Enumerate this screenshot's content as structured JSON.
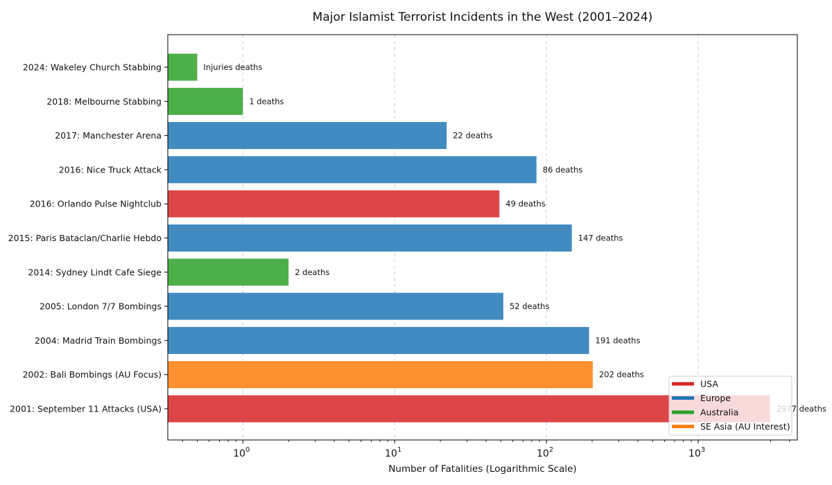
{
  "chart_data": {
    "type": "bar",
    "orientation": "horizontal",
    "title": "Major Islamist Terrorist Incidents in the West (2001–2024)",
    "xlabel": "Number of Fatalities (Logarithmic Scale)",
    "ylabel": "",
    "xscale": "log",
    "xlim": [
      0.32,
      4500
    ],
    "xticks": [
      {
        "value": 1,
        "base": "10",
        "exp": "0"
      },
      {
        "value": 10,
        "base": "10",
        "exp": "1"
      },
      {
        "value": 100,
        "base": "10",
        "exp": "2"
      },
      {
        "value": 1000,
        "base": "10",
        "exp": "3"
      }
    ],
    "grid": "x-dashed",
    "legend_position": "bottom-right",
    "categories": [
      "2024: Wakeley Church Stabbing",
      "2018: Melbourne Stabbing",
      "2017: Manchester Arena",
      "2016: Nice Truck Attack",
      "2016: Orlando Pulse Nightclub",
      "2015: Paris Bataclan/Charlie Hebdo",
      "2014: Sydney Lindt Cafe Siege",
      "2005: London 7/7 Bombings",
      "2004: Madrid Train Bombings",
      "2002: Bali Bombings (AU Focus)",
      "2001: September 11 Attacks (USA)"
    ],
    "values": [
      0.5,
      1,
      22,
      86,
      49,
      147,
      2,
      52,
      191,
      202,
      2977
    ],
    "regions": [
      "Australia",
      "Australia",
      "Europe",
      "Europe",
      "USA",
      "Europe",
      "Australia",
      "Europe",
      "Europe",
      "SE Asia (AU Interest)",
      "USA"
    ],
    "data_labels": [
      "Injuries deaths",
      "1 deaths",
      "22 deaths",
      "86 deaths",
      "49 deaths",
      "147 deaths",
      "2 deaths",
      "52 deaths",
      "191 deaths",
      "202 deaths",
      "2977 deaths"
    ],
    "legend": [
      {
        "label": "USA",
        "color": "#d62728"
      },
      {
        "label": "Europe",
        "color": "#1f77b4"
      },
      {
        "label": "Australia",
        "color": "#2ca02c"
      },
      {
        "label": "SE Asia (AU Interest)",
        "color": "#ff7f0e"
      }
    ],
    "bar_colors": {
      "USA": "#dc4548",
      "Europe": "#418bc0",
      "Australia": "#4daf4a",
      "SE Asia (AU Interest)": "#fd9030"
    }
  }
}
